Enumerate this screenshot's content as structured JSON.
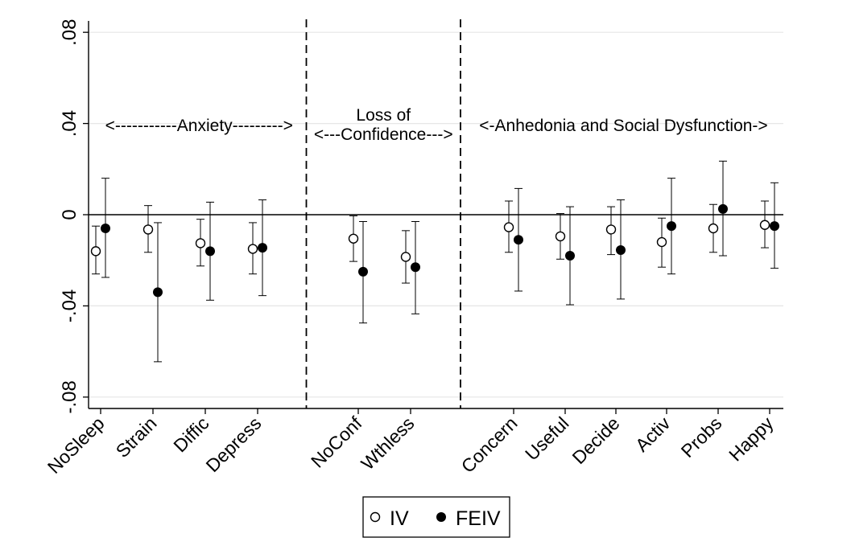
{
  "chart_data": {
    "type": "scatter",
    "categories": [
      "NoSleep",
      "Strain",
      "Diffic",
      "Depress",
      "NoConf",
      "Wthless",
      "Concern",
      "Useful",
      "Decide",
      "Activ",
      "Probs",
      "Happy"
    ],
    "ylim": [
      -0.085,
      0.085
    ],
    "y_ticks": [
      {
        "value": 0.08,
        "label": ".08"
      },
      {
        "value": 0.04,
        "label": ".04"
      },
      {
        "value": 0,
        "label": "0"
      },
      {
        "value": -0.04,
        "label": "-.04"
      },
      {
        "value": -0.08,
        "label": "-.08"
      }
    ],
    "grid": true,
    "zero_line": true,
    "legend_position": "bottom",
    "series": [
      {
        "name": "IV",
        "marker": "hollow-circle",
        "points": [
          {
            "category": "NoSleep",
            "y": -0.016,
            "lo": -0.026,
            "hi": -0.005
          },
          {
            "category": "Strain",
            "y": -0.0065,
            "lo": -0.0165,
            "hi": 0.004
          },
          {
            "category": "Diffic",
            "y": -0.0125,
            "lo": -0.0225,
            "hi": -0.002
          },
          {
            "category": "Depress",
            "y": -0.015,
            "lo": -0.026,
            "hi": -0.0035
          },
          {
            "category": "NoConf",
            "y": -0.0105,
            "lo": -0.0205,
            "hi": -0.0005
          },
          {
            "category": "Wthless",
            "y": -0.0185,
            "lo": -0.03,
            "hi": -0.007
          },
          {
            "category": "Concern",
            "y": -0.0055,
            "lo": -0.0165,
            "hi": 0.006
          },
          {
            "category": "Useful",
            "y": -0.0095,
            "lo": -0.0195,
            "hi": 0.0005
          },
          {
            "category": "Decide",
            "y": -0.0065,
            "lo": -0.0175,
            "hi": 0.0035
          },
          {
            "category": "Activ",
            "y": -0.012,
            "lo": -0.023,
            "hi": -0.0015
          },
          {
            "category": "Probs",
            "y": -0.006,
            "lo": -0.0165,
            "hi": 0.0045
          },
          {
            "category": "Happy",
            "y": -0.0045,
            "lo": -0.0145,
            "hi": 0.006
          }
        ]
      },
      {
        "name": "FEIV",
        "marker": "filled-circle",
        "points": [
          {
            "category": "NoSleep",
            "y": -0.006,
            "lo": -0.0275,
            "hi": 0.016
          },
          {
            "category": "Strain",
            "y": -0.034,
            "lo": -0.0645,
            "hi": -0.0035
          },
          {
            "category": "Diffic",
            "y": -0.016,
            "lo": -0.0375,
            "hi": 0.0055
          },
          {
            "category": "Depress",
            "y": -0.0145,
            "lo": -0.0355,
            "hi": 0.0065
          },
          {
            "category": "NoConf",
            "y": -0.025,
            "lo": -0.0475,
            "hi": -0.003
          },
          {
            "category": "Wthless",
            "y": -0.023,
            "lo": -0.0435,
            "hi": -0.003
          },
          {
            "category": "Concern",
            "y": -0.011,
            "lo": -0.0335,
            "hi": 0.0115
          },
          {
            "category": "Useful",
            "y": -0.018,
            "lo": -0.0395,
            "hi": 0.0035
          },
          {
            "category": "Decide",
            "y": -0.0155,
            "lo": -0.037,
            "hi": 0.0065
          },
          {
            "category": "Activ",
            "y": -0.005,
            "lo": -0.026,
            "hi": 0.016
          },
          {
            "category": "Probs",
            "y": 0.0025,
            "lo": -0.018,
            "hi": 0.0235
          },
          {
            "category": "Happy",
            "y": -0.005,
            "lo": -0.0235,
            "hi": 0.014
          }
        ]
      }
    ],
    "section_dividers_after": [
      "Depress",
      "Wthless"
    ],
    "sections": [
      {
        "label": "<-----------Anxiety--------->",
        "lines": [
          "<-----------Anxiety--------->"
        ]
      },
      {
        "label": "Loss of <---Confidence--->",
        "lines": [
          "Loss of",
          "<---Confidence--->"
        ]
      },
      {
        "label": "<-Anhedonia and Social Dysfunction->",
        "lines": [
          "<-Anhedonia and Social Dysfunction->"
        ]
      }
    ]
  }
}
